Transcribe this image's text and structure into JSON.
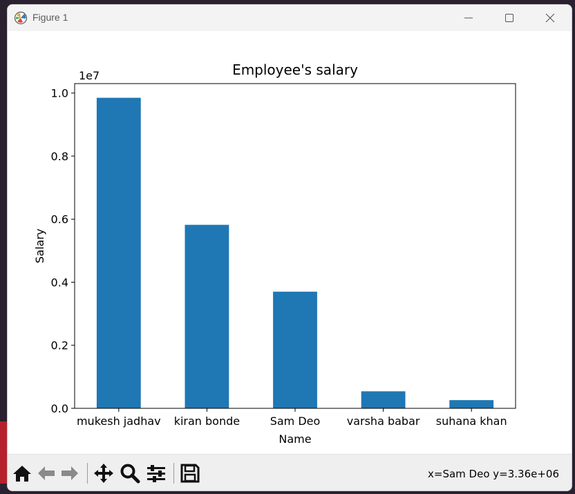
{
  "window": {
    "title": "Figure 1"
  },
  "toolbar": {
    "buttons": [
      "home-icon",
      "back-arrow-icon",
      "forward-arrow-icon",
      "pan-icon",
      "zoom-icon",
      "configure-subplots-icon",
      "save-icon"
    ],
    "status": "x=Sam Deo y=3.36e+06"
  },
  "colors": {
    "bar": "#1f77b4",
    "toolbar_icon": "#111111"
  },
  "chart_data": {
    "type": "bar",
    "title": "Employee's salary",
    "xlabel": "Name",
    "ylabel": "Salary",
    "offset_label": "1e7",
    "categories": [
      "mukesh jadhav",
      "kiran bonde",
      "Sam Deo",
      "varsha babar",
      "suhana khan"
    ],
    "values": [
      9850000,
      5820000,
      3700000,
      540000,
      260000
    ],
    "ylim": [
      0,
      10300000
    ],
    "yticks": [
      0,
      2000000,
      4000000,
      6000000,
      8000000,
      10000000
    ],
    "ytick_labels": [
      "0.0",
      "0.2",
      "0.4",
      "0.6",
      "0.8",
      "1.0"
    ],
    "grid": false,
    "legend": "none"
  }
}
